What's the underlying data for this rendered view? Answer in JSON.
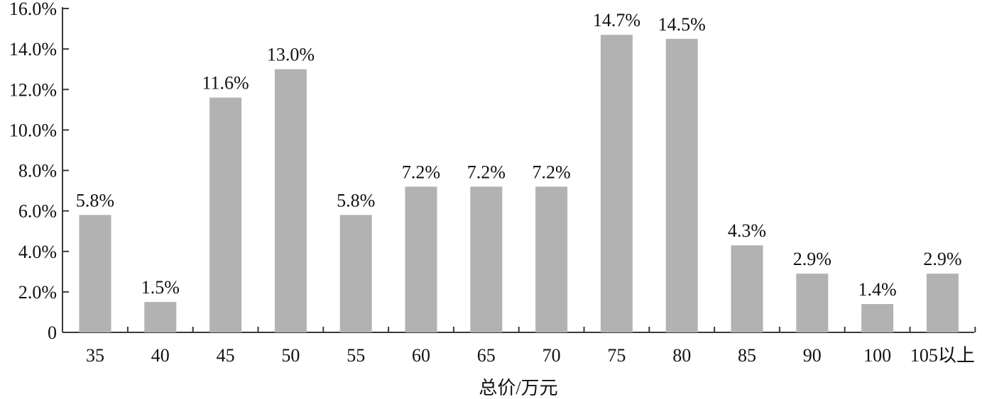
{
  "chart_data": {
    "type": "bar",
    "categories": [
      "35",
      "40",
      "45",
      "50",
      "55",
      "60",
      "65",
      "70",
      "75",
      "80",
      "85",
      "90",
      "100",
      "105以上"
    ],
    "values": [
      5.8,
      1.5,
      11.6,
      13.0,
      5.8,
      7.2,
      7.2,
      7.2,
      14.7,
      14.5,
      4.3,
      2.9,
      1.4,
      2.9
    ],
    "data_labels": [
      "5.8%",
      "1.5%",
      "11.6%",
      "13.0%",
      "5.8%",
      "7.2%",
      "7.2%",
      "7.2%",
      "14.7%",
      "14.5%",
      "4.3%",
      "2.9%",
      "1.4%",
      "2.9%"
    ],
    "title": "",
    "xlabel": "总价/万元",
    "ylabel": "",
    "ylim": [
      0,
      16
    ],
    "y_ticks": [
      0,
      2,
      4,
      6,
      8,
      10,
      12,
      14,
      16
    ],
    "y_tick_labels": [
      "0",
      "2.0%",
      "4.0%",
      "6.0%",
      "8.0%",
      "10.0%",
      "12.0%",
      "14.0%",
      "16.0%"
    ],
    "grid": false,
    "legend": "none",
    "colors": {
      "bar": "#b2b2b2",
      "axis": "#3a3a3a",
      "text": "#111111"
    }
  }
}
